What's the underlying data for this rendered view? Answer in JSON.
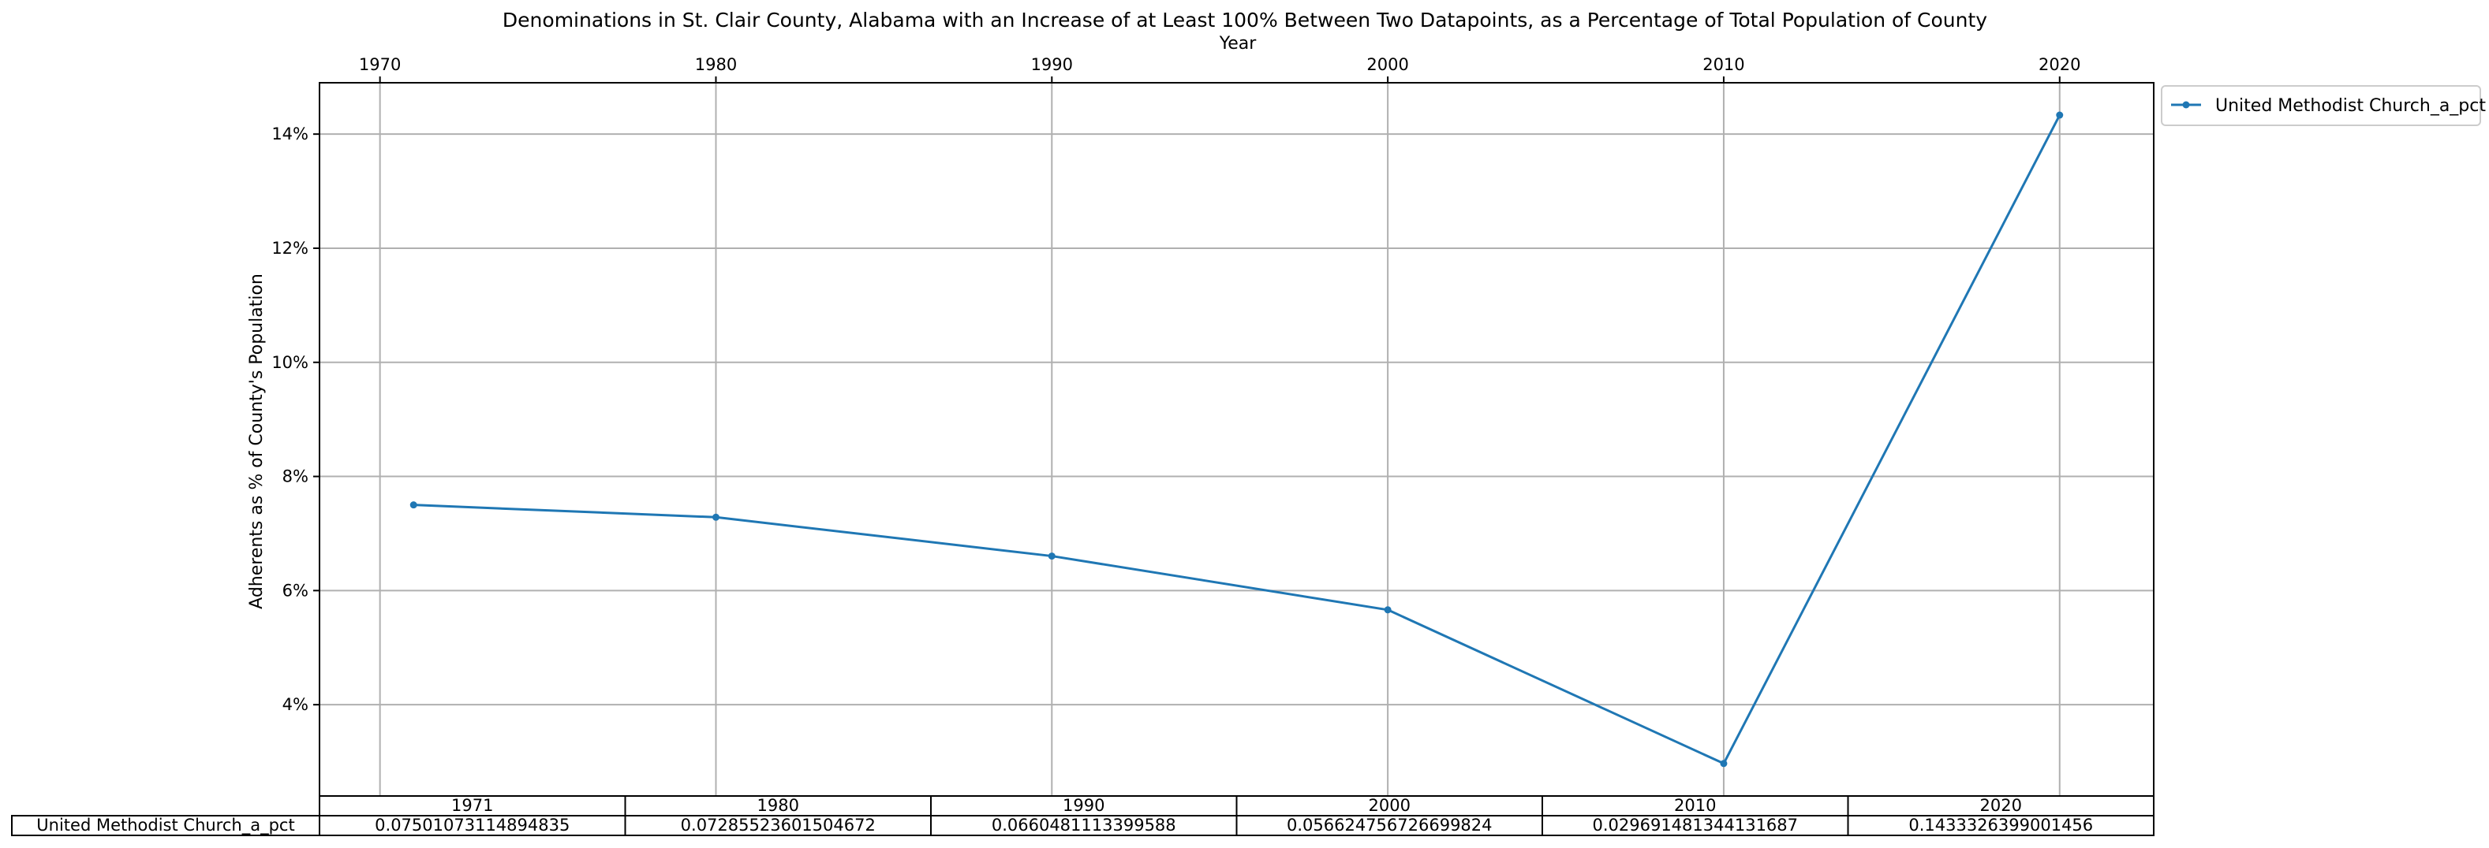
{
  "chart_data": {
    "type": "line",
    "title": "Denominations in St. Clair County, Alabama with an Increase of at Least 100% Between Two Datapoints, as a Percentage of Total Population of County",
    "xlabel": "Year",
    "ylabel": "Adherents as % of County's Population",
    "x_ticks": [
      "1970",
      "1980",
      "1990",
      "2000",
      "2010",
      "2020"
    ],
    "y_ticks": [
      "4%",
      "6%",
      "8%",
      "10%",
      "12%",
      "14%"
    ],
    "xlim": [
      1968.2,
      2022.8
    ],
    "ylim": [
      2.4,
      14.9
    ],
    "grid": true,
    "legend_position": "outside-top-right",
    "x": [
      1971,
      1980,
      1990,
      2000,
      2010,
      2020
    ],
    "series": [
      {
        "name": "United Methodist Church_a_pct",
        "values": [
          7.501073114894835,
          7.285523601504672,
          6.60481113399588,
          5.6624756726699825,
          2.9691481344131687,
          14.33326399001456
        ],
        "color": "#1f77b4"
      }
    ],
    "table": {
      "columns": [
        "1971",
        "1980",
        "1990",
        "2000",
        "2010",
        "2020"
      ],
      "row_label": "United Methodist Church_a_pct",
      "cells": [
        "0.07501073114894835",
        "0.07285523601504672",
        "0.0660481113399588",
        "0.056624756726699824",
        "0.029691481344131687",
        "0.1433326399001456"
      ]
    }
  }
}
